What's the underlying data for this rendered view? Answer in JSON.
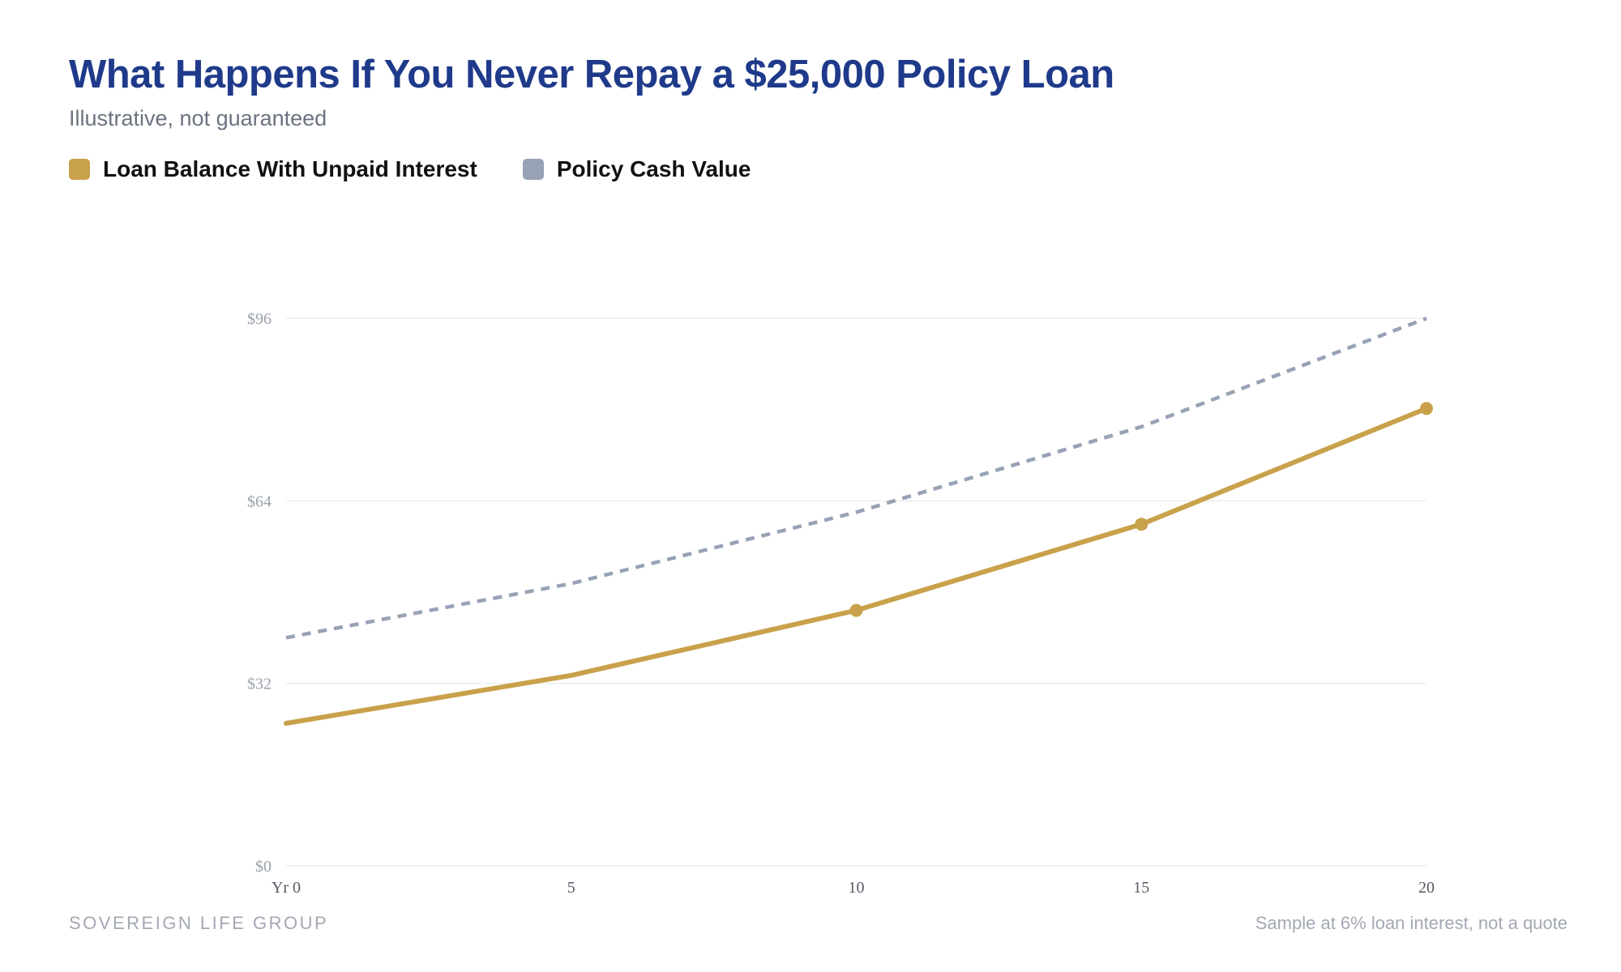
{
  "header": {
    "title": "What Happens If You Never Repay a $25,000 Policy Loan",
    "subtitle": "Illustrative, not guaranteed"
  },
  "footer": {
    "brand": "SOVEREIGN LIFE GROUP",
    "note": "Sample at 6% loan interest, not a quote"
  },
  "colors": {
    "title": "#1f3a8a",
    "loan": "#c9a14a",
    "cash": "#97a2b5",
    "grid": "#eeeeee",
    "tick": "#9aa0ac"
  },
  "chart_data": {
    "type": "line",
    "title": "What Happens If You Never Repay a $25,000 Policy Loan",
    "subtitle": "Illustrative, not guaranteed",
    "x": [
      0,
      5,
      10,
      15,
      20
    ],
    "x_tick_labels": [
      "Yr 0",
      "5",
      "10",
      "15",
      "20"
    ],
    "y_ticks": [
      0,
      32,
      64,
      96
    ],
    "y_tick_labels": [
      "$0",
      "$32",
      "$64",
      "$96"
    ],
    "xlim": [
      0,
      20
    ],
    "ylim": [
      0,
      96
    ],
    "grid": true,
    "legend_position": "top-left",
    "series": [
      {
        "name": "Loan Balance With Unpaid Interest",
        "color": "#c9a14a",
        "style": "solid",
        "values": [
          25,
          33.4,
          44.8,
          59.9,
          80.2
        ],
        "markers": [
          false,
          false,
          true,
          true,
          true
        ]
      },
      {
        "name": "Policy Cash Value",
        "color": "#97a2b5",
        "style": "dashed",
        "values": [
          40,
          49.5,
          62,
          77,
          96
        ],
        "markers": [
          false,
          false,
          false,
          false,
          false
        ]
      }
    ]
  }
}
